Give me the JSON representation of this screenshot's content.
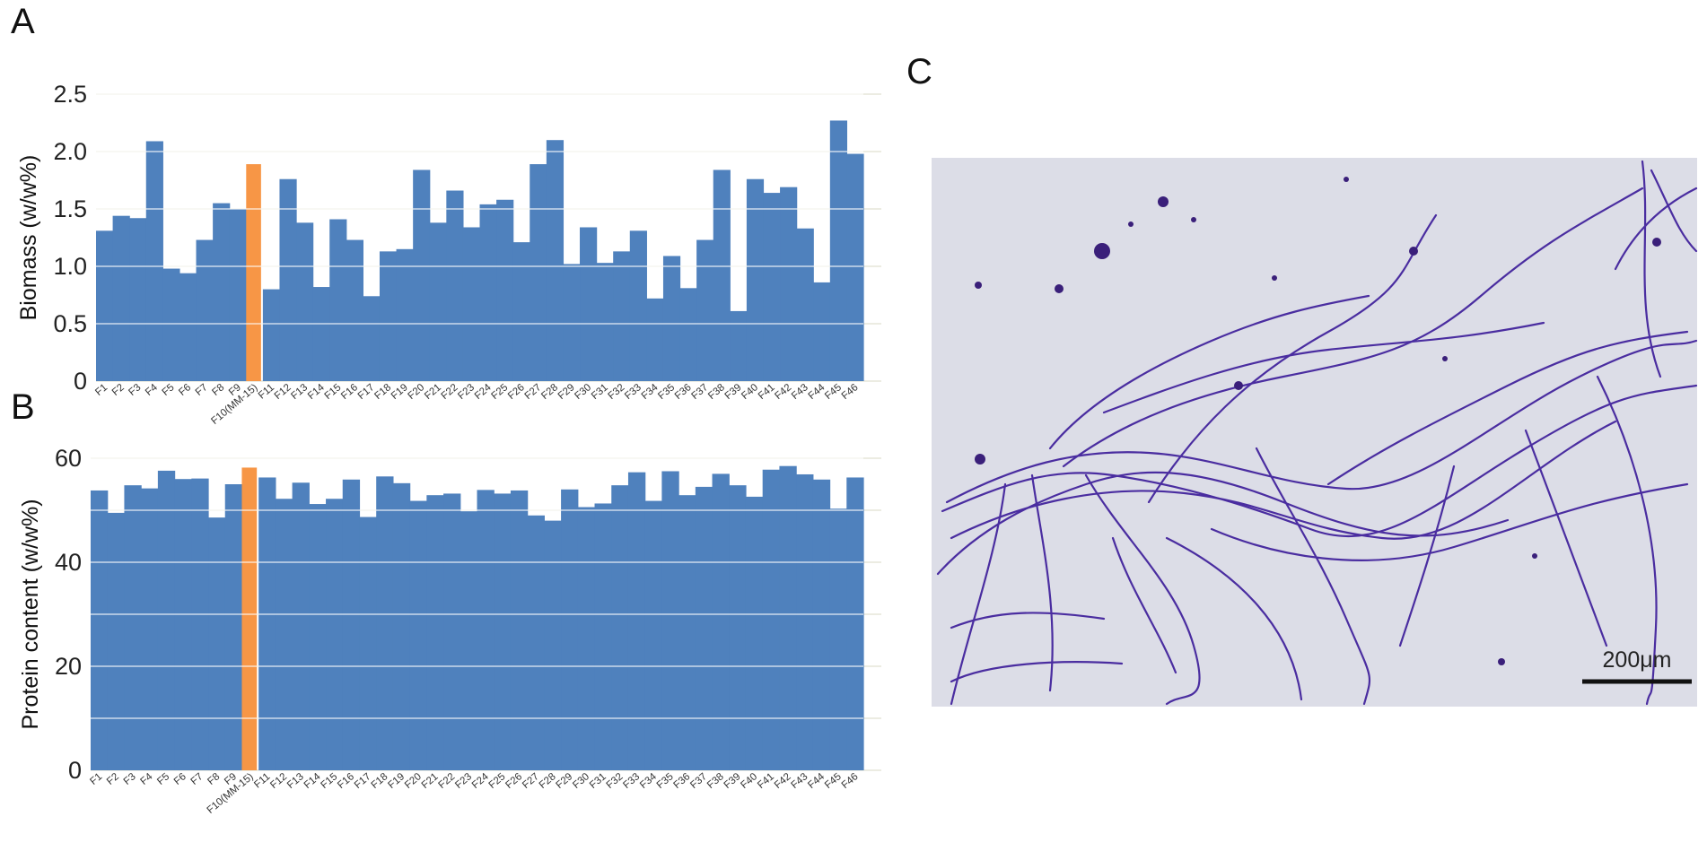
{
  "panels": {
    "a": "A",
    "b": "B",
    "c": "C"
  },
  "colors": {
    "bar": "#4f81bd",
    "highlight": "#f79646",
    "grid": "#e6e6d8",
    "micro_bg": "#dcdde7",
    "filament": "#4a2da0"
  },
  "micrograph": {
    "scale_label": "200μm"
  },
  "chart_data": [
    {
      "type": "bar",
      "id": "biomass",
      "panel": "A",
      "xlabel": "",
      "ylabel": "Biomass (w/w%)",
      "ylim": [
        0,
        2.5
      ],
      "yticks": [
        "0",
        "0.5",
        "1.0",
        "1.5",
        "2.0",
        "2.5"
      ],
      "yticks_values": [
        0,
        0.5,
        1.0,
        1.5,
        2.0,
        2.5
      ],
      "highlight_category": "F10(MM-15)",
      "categories": [
        "F1",
        "F2",
        "F3",
        "F4",
        "F5",
        "F6",
        "F7",
        "F8",
        "F9",
        "F10(MM-15)",
        "F11",
        "F12",
        "F13",
        "F14",
        "F15",
        "F16",
        "F17",
        "F18",
        "F19",
        "F20",
        "F21",
        "F22",
        "F23",
        "F24",
        "F25",
        "F26",
        "F27",
        "F28",
        "F29",
        "F30",
        "F31",
        "F32",
        "F33",
        "F34",
        "F35",
        "F36",
        "F37",
        "F38",
        "F39",
        "F40",
        "F41",
        "F42",
        "F43",
        "F44",
        "F45",
        "F46"
      ],
      "values": [
        1.31,
        1.44,
        1.42,
        2.09,
        0.98,
        0.94,
        1.23,
        1.55,
        1.5,
        1.89,
        0.8,
        1.76,
        1.38,
        0.82,
        1.41,
        1.23,
        0.74,
        1.13,
        1.15,
        1.84,
        1.38,
        1.66,
        1.34,
        1.54,
        1.58,
        1.21,
        1.89,
        2.1,
        1.02,
        1.34,
        1.03,
        1.13,
        1.31,
        0.72,
        1.09,
        0.81,
        1.23,
        1.84,
        0.61,
        1.76,
        1.64,
        1.69,
        1.33,
        0.86,
        2.27,
        1.98
      ]
    },
    {
      "type": "bar",
      "id": "protein",
      "panel": "B",
      "xlabel": "",
      "ylabel": "Protein content (w/w%)",
      "ylim": [
        0,
        60
      ],
      "yticks": [
        "0",
        "20",
        "40",
        "60"
      ],
      "yticks_values": [
        0,
        20,
        40,
        60
      ],
      "gridlines": [
        0,
        10,
        20,
        30,
        40,
        50,
        60
      ],
      "highlight_category": "F10(MM-15)",
      "categories": [
        "F1",
        "F2",
        "F3",
        "F4",
        "F5",
        "F6",
        "F7",
        "F8",
        "F9",
        "F10(MM-15)",
        "F11",
        "F12",
        "F13",
        "F14",
        "F15",
        "F16",
        "F17",
        "F18",
        "F19",
        "F20",
        "F21",
        "F22",
        "F23",
        "F24",
        "F25",
        "F26",
        "F27",
        "F28",
        "F29",
        "F30",
        "F31",
        "F32",
        "F33",
        "F34",
        "F35",
        "F36",
        "F37",
        "F38",
        "F39",
        "F40",
        "F41",
        "F42",
        "F43",
        "F44",
        "F45",
        "F46"
      ],
      "values": [
        53.8,
        49.5,
        54.8,
        54.2,
        57.6,
        56.0,
        56.1,
        48.6,
        55.0,
        58.2,
        56.3,
        52.2,
        55.3,
        51.2,
        52.2,
        55.9,
        48.7,
        56.5,
        55.2,
        51.8,
        52.9,
        53.2,
        49.8,
        53.9,
        53.2,
        53.8,
        49.0,
        48.0,
        54.0,
        50.6,
        51.3,
        54.8,
        57.3,
        51.8,
        57.5,
        52.9,
        54.5,
        57.0,
        54.8,
        52.6,
        57.8,
        58.5,
        56.9,
        55.9,
        50.3,
        56.3
      ]
    }
  ]
}
